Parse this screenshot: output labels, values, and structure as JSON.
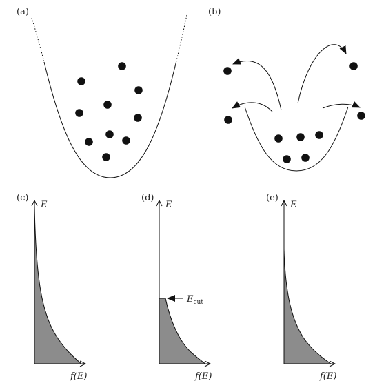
{
  "panels": {
    "a": {
      "label": "(a)"
    },
    "b": {
      "label": "(b)"
    },
    "c": {
      "label": "(c)",
      "y_axis": "E",
      "x_axis": "f(E)"
    },
    "d": {
      "label": "(d)",
      "y_axis": "E",
      "x_axis": "f(E)",
      "annotation_main": "E",
      "annotation_sub": "cut"
    },
    "e": {
      "label": "(e)",
      "y_axis": "E",
      "x_axis": "f(E)"
    }
  },
  "colors": {
    "ink": "#111111",
    "fill": "#8c8c8c",
    "background": "#ffffff"
  }
}
